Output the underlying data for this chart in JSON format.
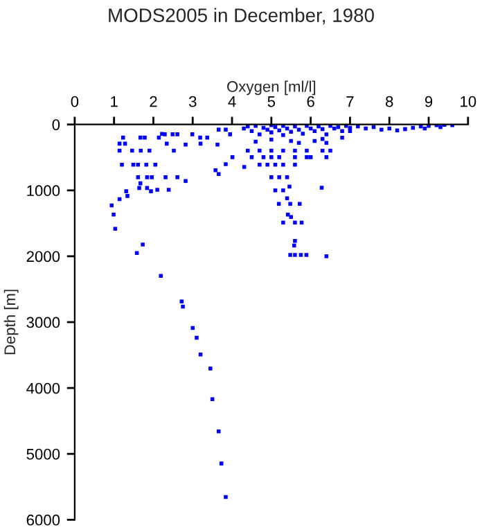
{
  "chart_data": {
    "type": "scatter",
    "title": "MODS2005 in December, 1980",
    "xlabel": "Oxygen [ml/l]",
    "ylabel": "Depth [m]",
    "xlim": [
      0,
      10
    ],
    "xticks": [
      0,
      1,
      2,
      3,
      4,
      5,
      6,
      7,
      8,
      9,
      10
    ],
    "ylim": [
      6000,
      0
    ],
    "yticks": [
      0,
      1000,
      2000,
      3000,
      4000,
      5000,
      6000
    ],
    "grid": false,
    "marker": "square",
    "series": [
      {
        "color": "#0000ff",
        "x": [
          1.03,
          1.73,
          1.58,
          2.19,
          2.72,
          2.75,
          3.0,
          3.1,
          3.2,
          3.45,
          3.5,
          3.66,
          3.73,
          3.84,
          5.48,
          5.6,
          5.75,
          5.89,
          5.6,
          5.58,
          6.4,
          1.23,
          1.14,
          1.28,
          1.67,
          1.78,
          1.14,
          1.46,
          1.68,
          1.9,
          1.2,
          1.49,
          1.61,
          1.82,
          2.05,
          1.61,
          1.84,
          1.96,
          2.31,
          2.61,
          1.67,
          1.64,
          1.84,
          1.94,
          2.1,
          2.39,
          1.31,
          1.34,
          1.14,
          0.94,
          0.99,
          2.29,
          2.49,
          2.61,
          2.14,
          2.34,
          2.52,
          2.82,
          2.99,
          3.19,
          3.37,
          3.2,
          3.63,
          3.66,
          3.84,
          3.95,
          4.01,
          3.84,
          3.58,
          3.66,
          4.31,
          2.82,
          2.22,
          4.3,
          4.4,
          4.5,
          4.6,
          4.7,
          4.8,
          4.9,
          5.0,
          5.0,
          5.1,
          5.2,
          5.3,
          5.3,
          5.4,
          5.5,
          5.6,
          5.7,
          5.8,
          5.9,
          6.0,
          6.1,
          6.2,
          6.3,
          6.4,
          6.5,
          6.6,
          6.7,
          6.8,
          6.9,
          7.0,
          7.2,
          7.4,
          7.6,
          7.8,
          8.0,
          8.2,
          8.4,
          8.6,
          8.8,
          9.0,
          9.2,
          9.4,
          9.6,
          8.9,
          9.3,
          7.0,
          6.3,
          6.1,
          5.5,
          5.0,
          4.6,
          5.7,
          6.4,
          6.8,
          4.4,
          4.7,
          5.0,
          5.3,
          5.6,
          5.9,
          6.3,
          6.5,
          4.5,
          4.8,
          5.0,
          5.2,
          5.6,
          5.9,
          6.0,
          6.4,
          4.7,
          4.9,
          5.1,
          5.3,
          5.6,
          5.0,
          5.2,
          5.4,
          5.46,
          5.1,
          5.3,
          6.28,
          5.4,
          5.19,
          5.48,
          5.72,
          5.42,
          5.5,
          5.3,
          5.6,
          5.77
        ],
        "values": [
          1583,
          1823,
          1950,
          2297,
          2686,
          2764,
          3089,
          3237,
          3492,
          3704,
          4170,
          4658,
          5146,
          5655,
          1980,
          1980,
          1980,
          1980,
          1767,
          1837,
          2000,
          199,
          291,
          291,
          199,
          199,
          397,
          397,
          397,
          397,
          610,
          610,
          610,
          610,
          610,
          801,
          801,
          801,
          801,
          801,
          893,
          964,
          964,
          1014,
          992,
          992,
          1014,
          1085,
          1134,
          1227,
          1368,
          149,
          149,
          149,
          199,
          291,
          397,
          305,
          149,
          199,
          199,
          291,
          305,
          78,
          78,
          149,
          496,
          603,
          695,
          752,
          645,
          858,
          142,
          60,
          30,
          100,
          20,
          150,
          50,
          80,
          10,
          120,
          40,
          90,
          20,
          160,
          60,
          110,
          30,
          80,
          140,
          20,
          60,
          100,
          30,
          70,
          150,
          20,
          60,
          40,
          100,
          20,
          50,
          30,
          60,
          40,
          80,
          60,
          90,
          70,
          50,
          30,
          20,
          10,
          5,
          10,
          60,
          40,
          100,
          220,
          250,
          250,
          230,
          260,
          280,
          280,
          200,
          397,
          397,
          397,
          397,
          397,
          397,
          397,
          397,
          496,
          496,
          496,
          496,
          496,
          496,
          496,
          496,
          610,
          610,
          610,
          610,
          610,
          801,
          801,
          801,
          943,
          1000,
          1000,
          960,
          1120,
          1205,
          1205,
          1205,
          1368,
          1404,
          1489,
          1489,
          1489
        ]
      }
    ]
  }
}
